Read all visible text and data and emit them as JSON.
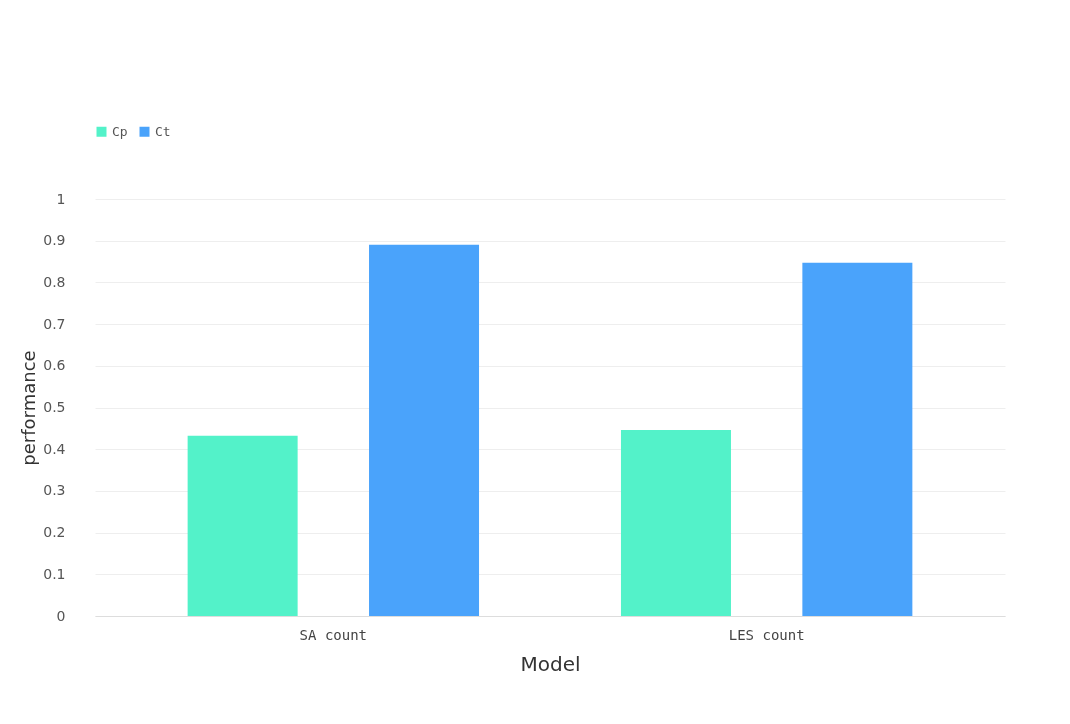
{
  "chart_data": {
    "type": "bar",
    "xlabel": "Model",
    "ylabel": "performance",
    "categories": [
      "SA count",
      "LES count"
    ],
    "series": [
      {
        "name": "Cp",
        "color": "#53f2c9",
        "values": [
          0.432,
          0.446
        ]
      },
      {
        "name": "Ct",
        "color": "#4aa3fb",
        "values": [
          0.89,
          0.847
        ]
      }
    ],
    "ylim": [
      0,
      1
    ],
    "yticks": [
      0,
      0.1,
      0.2,
      0.3,
      0.4,
      0.5,
      0.6,
      0.7,
      0.8,
      0.9,
      1
    ],
    "grid": "y",
    "legend": "top left"
  }
}
